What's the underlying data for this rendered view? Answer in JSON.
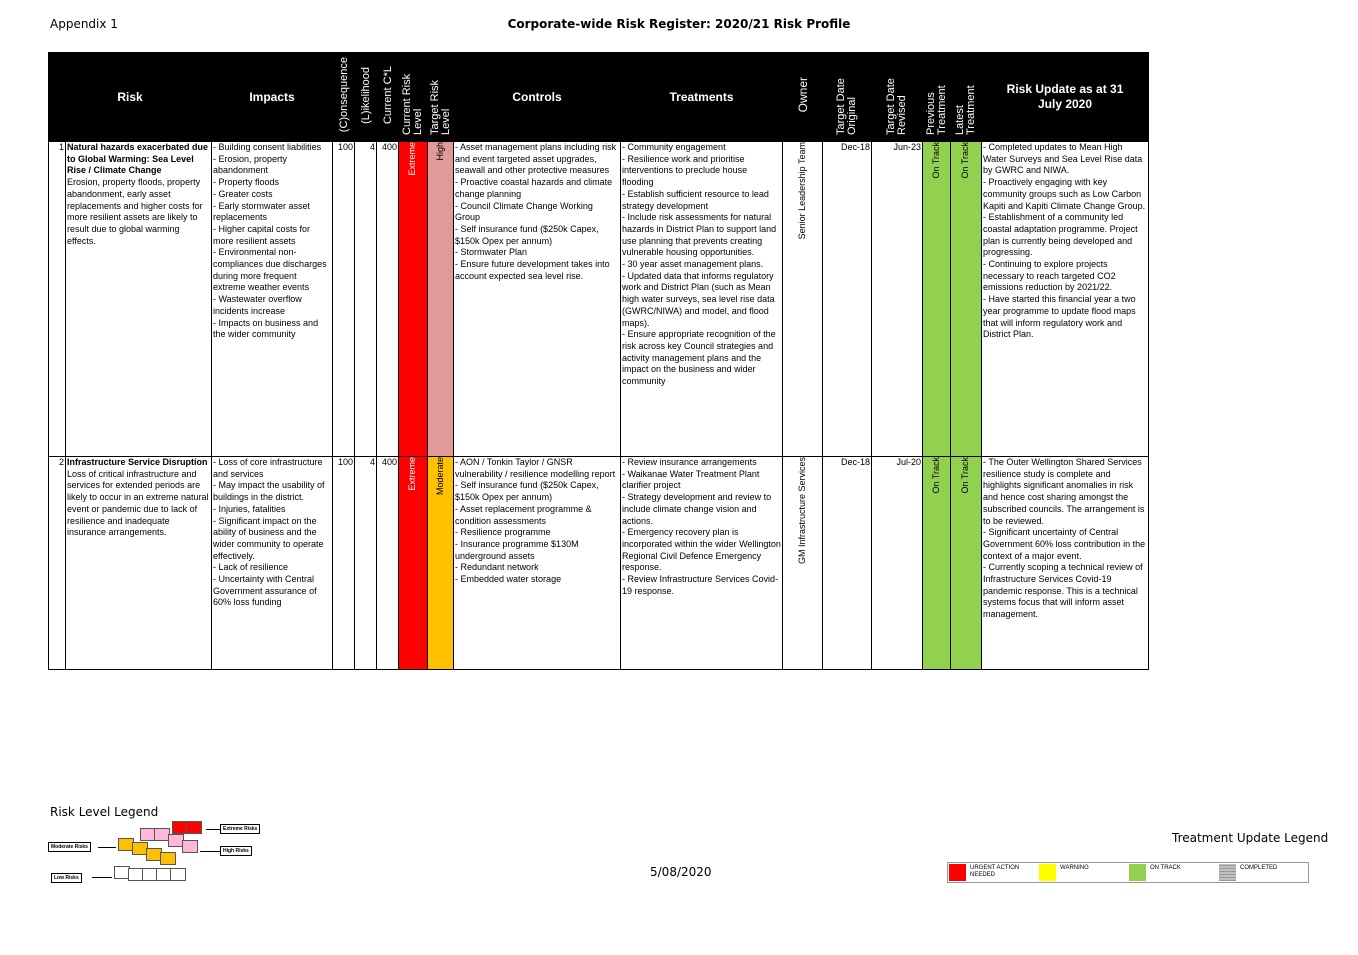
{
  "header": {
    "appendix": "Appendix 1",
    "title": "Corporate-wide Risk Register: 2020/21 Risk Profile"
  },
  "columns": {
    "risk": "Risk",
    "impacts": "Impacts",
    "consequence": "(C)onsequence",
    "likelihood": "(L)ikelihood",
    "current_cl": "Current C*L",
    "current_risk_level": "Current Risk Level",
    "target_risk_level": "Target Risk Level",
    "controls": "Controls",
    "treatments": "Treatments",
    "owner": "Owner",
    "target_date_original": "Target Date Original",
    "target_date_revised": "Target Date Revised",
    "previous_treatment": "Previous Treatment",
    "latest_treatment": "Latest Treatment",
    "risk_update": "Risk Update as at 31 July 2020"
  },
  "colors": {
    "extreme": "#ff0000",
    "high": "#e19a9a",
    "moderate": "#ffc000",
    "on_track": "#92d050"
  },
  "rows": [
    {
      "num": "1",
      "risk_title": "Natural hazards exacerbated due to Global Warming: Sea Level Rise / Climate Change",
      "risk_desc": "Erosion, property floods, property abandonment, early asset replacements and higher costs for more resilient assets are likely to result due to global warming effects.",
      "impacts": "- Building consent liabilities\n- Erosion, property abandonment\n- Property  floods\n- Greater costs\n- Early stormwater asset replacements\n- Higher capital costs for more resilient assets\n- Environmental non-compliances due discharges during more frequent extreme weather events\n- Wastewater overflow incidents increase\n- Impacts on business and the wider community",
      "consequence": "100",
      "likelihood": "4",
      "current_cl": "400",
      "current_level": "Extreme",
      "target_level": "High",
      "controls": "- Asset management plans including risk and event targeted asset upgrades, seawall and other protective measures\n- Proactive coastal hazards and climate change planning\n- Council Climate Change Working Group\n- Self insurance fund  ($250k Capex, $150k Opex per annum)\n- Stormwater Plan\n- Ensure future development takes into account expected sea level rise.",
      "treatments": " - Community engagement\n- Resilience work and prioritise interventions to preclude house flooding\n- Establish sufficient resource to lead strategy development\n- Include risk assessments for natural hazards in District Plan to support land use planning that prevents creating vulnerable housing opportunities.\n- 30 year asset management plans.\n- Updated data that informs regulatory work and District Plan (such as Mean high water surveys, sea level rise data (GWRC/NIWA) and  model, and flood maps).\n- Ensure appropriate recognition of the risk across key Council strategies and activity management plans and the impact on the business and wider community",
      "owner": "Senior Leadership Team",
      "date_original": "Dec-18",
      "date_revised": "Jun-23",
      "previous_treatment": "On Track",
      "latest_treatment": "On Track",
      "update": "- Completed updates to Mean High Water Surveys and Sea Level Rise data by GWRC and NIWA.\n- Proactively engaging with key community groups such as Low Carbon Kapiti and Kapiti Climate Change Group.\n- Establishment of a community led coastal adaptation programme. Project plan is currently being developed and progressing.\n- Continuing to explore projects necessary to reach targeted CO2 emissions reduction by 2021/22.\n- Have started this financial year a two year programme to update flood maps that will inform regulatory work and District Plan."
    },
    {
      "num": "2",
      "risk_title": "Infrastructure Service Disruption",
      "risk_desc": "Loss of critical infrastructure and services for extended periods are likely to occur in an extreme natural event or pandemic due to lack of resilience and inadequate insurance arrangements.",
      "impacts": "- Loss of core infrastructure and services\n- May impact the usability of buildings in the district.\n- Injuries, fatalities\n- Significant impact on the ability of business and the wider community to operate effectively.\n- Lack of resilience\n- Uncertainty with Central Government assurance of 60% loss funding",
      "consequence": "100",
      "likelihood": "4",
      "current_cl": "400",
      "current_level": "Extreme",
      "target_level": "Moderate",
      "controls": "- AON / Tonkin Taylor / GNSR vulnerability / resilience modelling report\n- Self insurance fund  ($250k Capex, $150k Opex per annum)\n- Asset replacement programme & condition assessments\n- Resilience programme\n- Insurance programme $130M underground assets\n- Redundant network\n- Embedded water storage",
      "treatments": "- Review insurance arrangements\n- Waikanae Water Treatment Plant clarifier project\n- Strategy development and review to include climate change vision and actions.\n- Emergency recovery plan is incorporated within the wider Wellington Regional Civil Defence Emergency response.\n- Review Infrastructure Services Covid-19 response.",
      "owner": "GM Infrastructure Services",
      "date_original": "Dec-18",
      "date_revised": "Jul-20",
      "previous_treatment": "On Track",
      "latest_treatment": "On Track",
      "update": "- The Outer Wellington Shared Services resilience study is complete and highlights significant anomalies in risk and hence cost sharing amongst the subscribed councils.  The arrangement is to be reviewed.\n- Significant uncertainty of Central Government 60% loss contribution in the context of a major event.\n- Currently scoping a technical  review of Infrastructure Services Covid-19 pandemic response.  This is a technical systems focus that will inform asset management."
    }
  ],
  "risk_legend": {
    "title": "Risk Level Legend",
    "extreme": "Extreme Risks",
    "high": "High Risks",
    "moderate": "Moderate Risks",
    "low": "Low Risks"
  },
  "footer_date": "5/08/2020",
  "treatment_legend": {
    "title": "Treatment Update Legend",
    "items": [
      {
        "label": "URGENT ACTION NEEDED",
        "color": "#ff0000"
      },
      {
        "label": "WARNING",
        "color": "#ffff00"
      },
      {
        "label": "ON TRACK",
        "color": "#92d050"
      },
      {
        "label": "COMPLETED",
        "color": "#bfbfbf"
      }
    ]
  }
}
